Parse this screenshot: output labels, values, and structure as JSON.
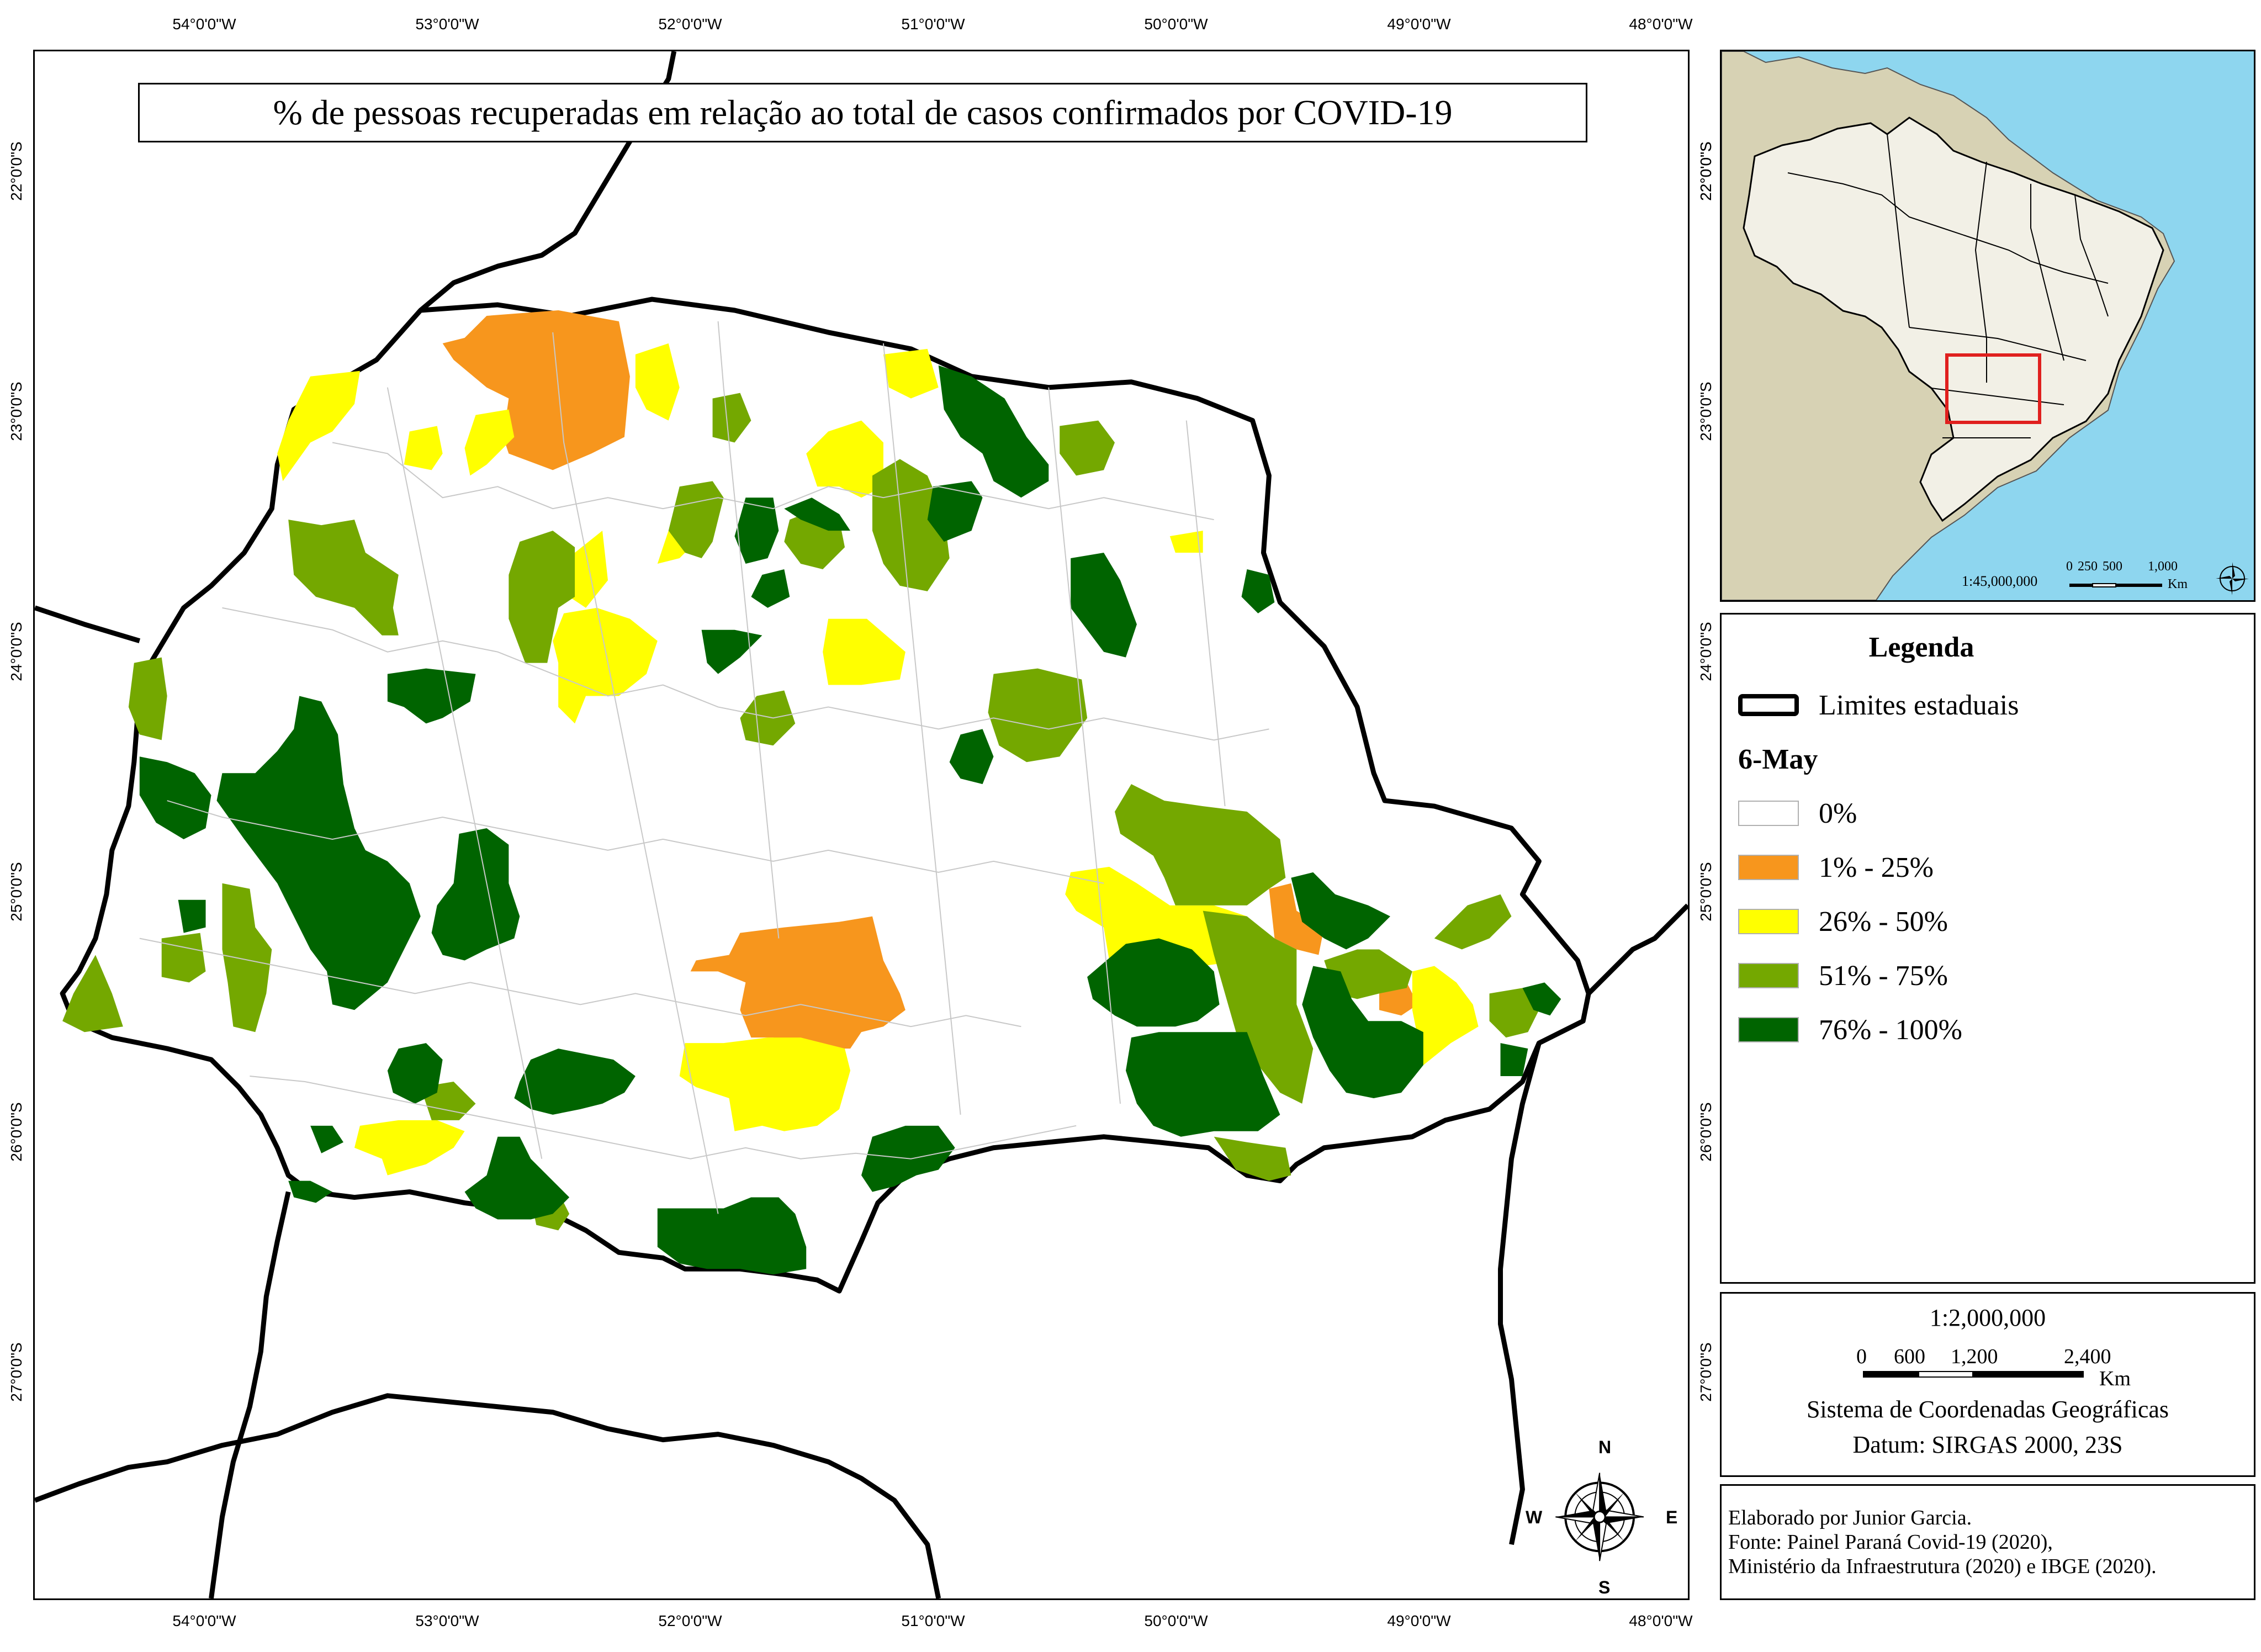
{
  "map": {
    "title": "% de pessoas recuperadas em relação ao total de casos confirmados por COVID-19",
    "lon_ticks": [
      "54°0'0\"W",
      "53°0'0\"W",
      "52°0'0\"W",
      "51°0'0\"W",
      "50°0'0\"W",
      "49°0'0\"W",
      "48°0'0\"W"
    ],
    "lat_ticks": [
      "22°0'0\"S",
      "23°0'0\"S",
      "24°0'0\"S",
      "25°0'0\"S",
      "26°0'0\"S",
      "27°0'0\"S"
    ],
    "north_arrow": {
      "n": "N",
      "s": "S",
      "e": "E",
      "w": "W"
    }
  },
  "inset": {
    "scale_text": "1:45,000,000",
    "scale_ticks": [
      "0",
      "250",
      "500",
      "1,000"
    ],
    "scale_unit": "Km",
    "colors": {
      "ocean": "#8ed6ef",
      "brazil": "#f2f0e6",
      "continent": "#d7d2b4",
      "highlight": "#e0201e"
    }
  },
  "legend": {
    "title": "Legenda",
    "boundary_label": "Limites estaduais",
    "date_label": "6-May",
    "classes": [
      {
        "label": "0%",
        "color": "#ffffff"
      },
      {
        "label": "1% - 25%",
        "color": "#f7961d"
      },
      {
        "label": "26% - 50%",
        "color": "#ffff00"
      },
      {
        "label": "51% - 75%",
        "color": "#74a800"
      },
      {
        "label": "76% - 100%",
        "color": "#006400"
      }
    ]
  },
  "scale": {
    "ratio": "1:2,000,000",
    "ticks": [
      "0",
      "600",
      "1,200",
      "2,400"
    ],
    "unit": "Km",
    "crs": "Sistema de Coordenadas Geográficas",
    "datum": "Datum: SIRGAS 2000, 23S"
  },
  "credits": {
    "line1": "Elaborado por Junior Garcia.",
    "line2": "Fonte: Painel Paraná Covid-19 (2020),",
    "line3": "Ministério da Infraestrutura (2020) e IBGE (2020)."
  }
}
